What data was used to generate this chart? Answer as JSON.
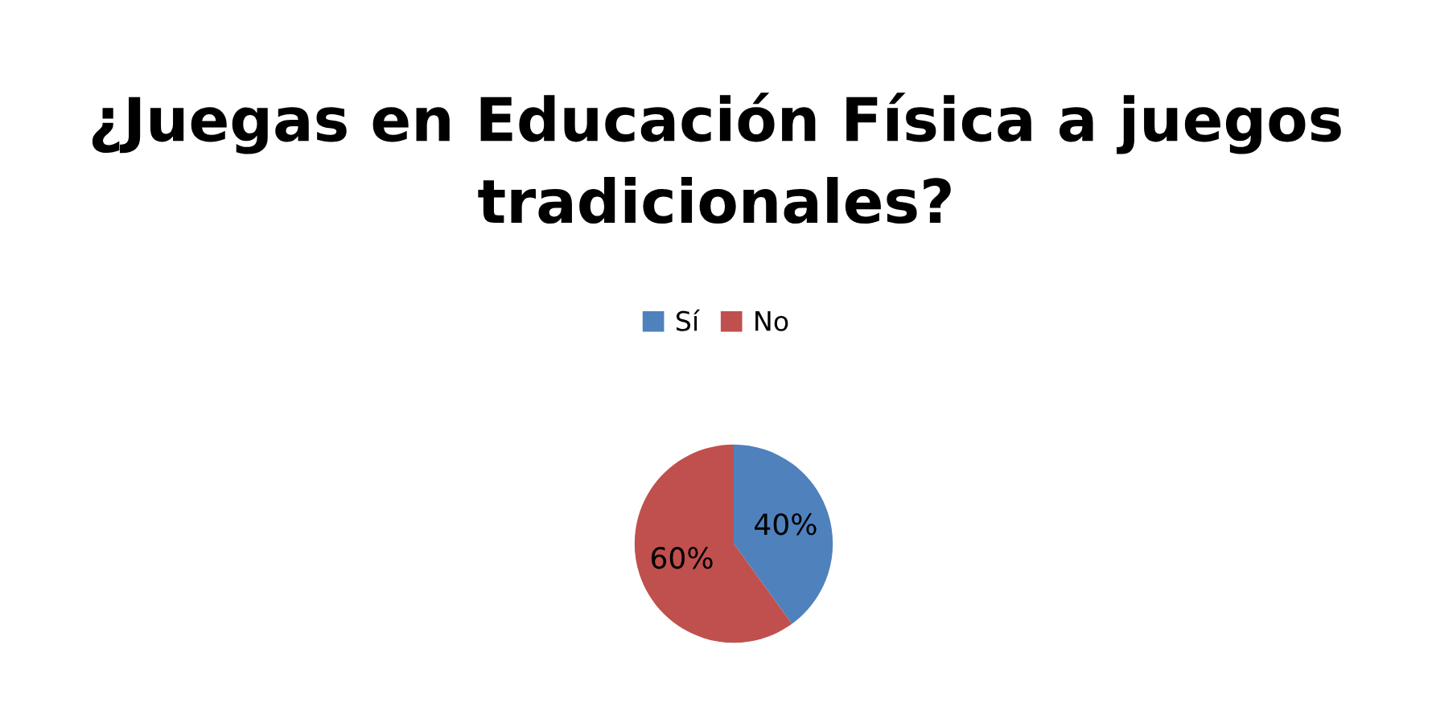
{
  "chart_data": {
    "type": "pie",
    "title": "¿Juegas en Educación Física a juegos tradicionales?",
    "categories": [
      "Sí",
      "No"
    ],
    "values": [
      40,
      60
    ],
    "colors": [
      "#4f81bd",
      "#c0504d"
    ],
    "value_labels": [
      "40%",
      "60%"
    ],
    "legend": "top"
  }
}
